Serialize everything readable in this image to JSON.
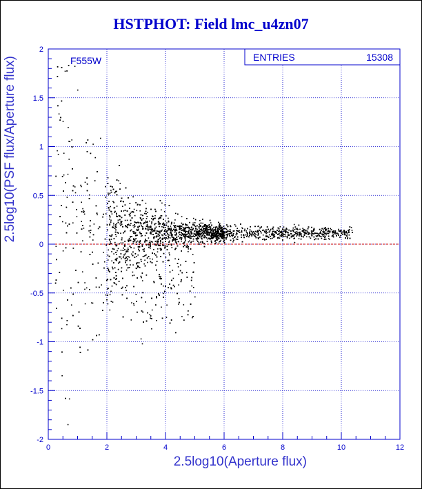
{
  "title": "HSTPHOT: Field lmc_u4zn07",
  "chart_data": {
    "type": "scatter",
    "filter_label": "F555W",
    "xlabel": "2.5log10(Aperture flux)",
    "ylabel": "2.5log10(PSF flux/Aperture flux)",
    "xlim": [
      0,
      12
    ],
    "ylim": [
      -2,
      2
    ],
    "x_ticks": [
      "0",
      "2",
      "4",
      "6",
      "8",
      "10",
      "12"
    ],
    "y_ticks": [
      "-2",
      "-1.5",
      "-1",
      "-0.5",
      "0",
      "0.5",
      "1",
      "1.5",
      "2"
    ],
    "grid": true,
    "reference_line_y": 0,
    "stats": {
      "label": "ENTRIES",
      "value": "15308"
    },
    "colors": {
      "axis": "#0000cc",
      "grid": "#0000cc",
      "points": "#000000",
      "reference_line": "#cc0000"
    }
  }
}
